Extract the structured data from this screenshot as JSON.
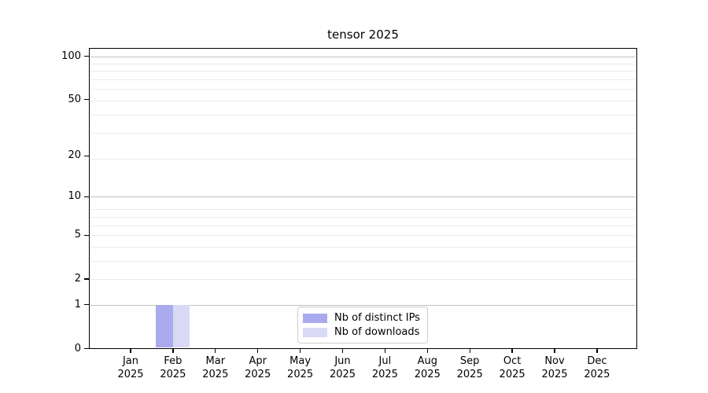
{
  "chart_data": {
    "type": "bar",
    "title": "tensor 2025",
    "x_tick_labels": [
      {
        "month": "Jan",
        "year": "2025"
      },
      {
        "month": "Feb",
        "year": "2025"
      },
      {
        "month": "Mar",
        "year": "2025"
      },
      {
        "month": "Apr",
        "year": "2025"
      },
      {
        "month": "May",
        "year": "2025"
      },
      {
        "month": "Jun",
        "year": "2025"
      },
      {
        "month": "Jul",
        "year": "2025"
      },
      {
        "month": "Aug",
        "year": "2025"
      },
      {
        "month": "Sep",
        "year": "2025"
      },
      {
        "month": "Oct",
        "year": "2025"
      },
      {
        "month": "Nov",
        "year": "2025"
      },
      {
        "month": "Dec",
        "year": "2025"
      }
    ],
    "series": [
      {
        "name": "Nb of distinct IPs",
        "color": "#aaaaee",
        "values": [
          0,
          1,
          0,
          0,
          0,
          0,
          0,
          0,
          0,
          0,
          0,
          0
        ]
      },
      {
        "name": "Nb of downloads",
        "color": "#d9d9f6",
        "values": [
          0,
          1,
          0,
          0,
          0,
          0,
          0,
          0,
          0,
          0,
          0,
          0
        ]
      }
    ],
    "y_scale": "log1p",
    "y_ticks": [
      0,
      1,
      2,
      5,
      10,
      20,
      50,
      100
    ],
    "ylim": [
      0,
      114
    ],
    "grid": {
      "major_values": [
        1,
        10,
        100
      ],
      "minor_values": [
        2,
        3,
        4,
        5,
        6,
        7,
        8,
        19,
        29,
        39,
        49,
        59,
        69,
        79,
        89
      ],
      "major_color": "#c0c0c0",
      "minor_color": "#ebebeb"
    },
    "legend_position": "lower center",
    "axis_color": "#000000",
    "background_color": "#ffffff"
  }
}
